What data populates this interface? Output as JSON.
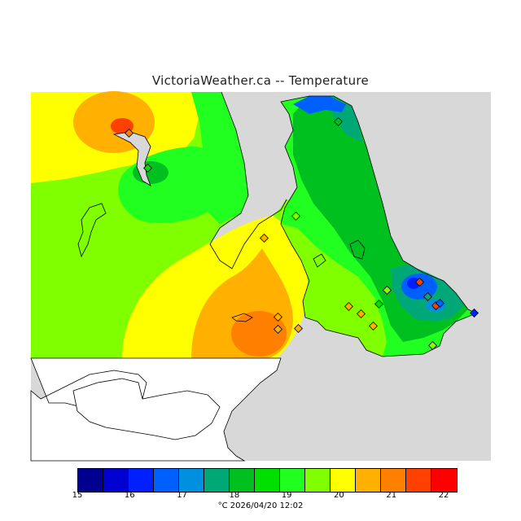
{
  "title": "VictoriaWeather.ca -- Temperature",
  "legend": {
    "ticks": [
      "15",
      "16",
      "17",
      "18",
      "19",
      "20",
      "21",
      "22"
    ],
    "colors": [
      "#000090",
      "#0000d0",
      "#0020ff",
      "#0060ff",
      "#0090e0",
      "#00a878",
      "#00c020",
      "#00e000",
      "#20ff20",
      "#80ff00",
      "#ffff00",
      "#ffb000",
      "#ff8000",
      "#ff4000",
      "#ff0000"
    ],
    "unit_time": "°C  2026/04/20 12:02"
  },
  "colors": {
    "water": "#d8d8d8",
    "yellow": "#ffff00",
    "orange": "#ffb000",
    "dark_orange": "#ff8000",
    "red": "#ff4000",
    "lime": "#80ff00",
    "green": "#20ff20",
    "mid_green": "#00e000",
    "dark_green": "#00c020",
    "teal": "#00a878",
    "blue": "#0060ff",
    "deep_blue": "#0020ff"
  }
}
